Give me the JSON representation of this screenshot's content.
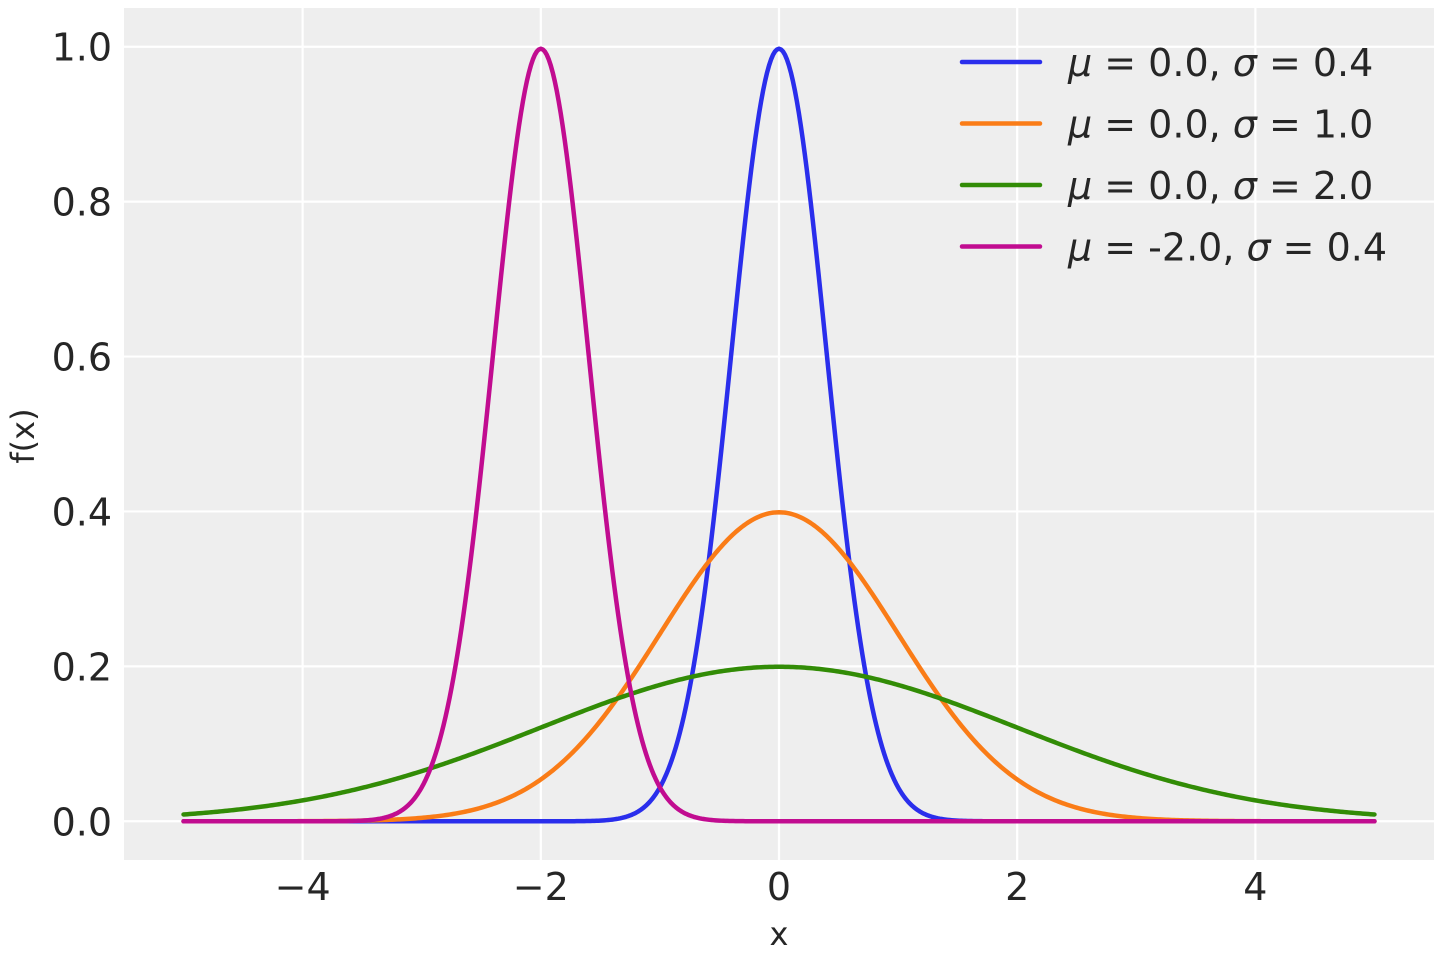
{
  "chart_data": {
    "type": "line",
    "xlabel": "x",
    "ylabel": "f(x)",
    "xlim": [
      -5.5,
      5.5
    ],
    "ylim": [
      -0.05,
      1.05
    ],
    "x_range": [
      -5,
      5
    ],
    "xticks": [
      -4,
      -2,
      0,
      2,
      4
    ],
    "xtick_labels": [
      "−4",
      "−2",
      "0",
      "2",
      "4"
    ],
    "yticks": [
      0.0,
      0.2,
      0.4,
      0.6,
      0.8,
      1.0
    ],
    "ytick_labels": [
      "0.0",
      "0.2",
      "0.4",
      "0.6",
      "0.8",
      "1.0"
    ],
    "grid": true,
    "legend_position": "top-right",
    "series": [
      {
        "name": "μ = 0.0, σ = 0.4",
        "mu": 0.0,
        "sigma": 0.4,
        "color": "#2a2eec"
      },
      {
        "name": "μ = 0.0, σ = 1.0",
        "mu": 0.0,
        "sigma": 1.0,
        "color": "#fa7c17"
      },
      {
        "name": "μ = 0.0, σ = 2.0",
        "mu": 0.0,
        "sigma": 2.0,
        "color": "#328c06"
      },
      {
        "name": "μ = -2.0, σ = 0.4",
        "mu": -2.0,
        "sigma": 0.4,
        "color": "#c10c90"
      }
    ],
    "legend_entries": [
      {
        "mu_sym": "μ",
        "mid": " = 0.0, ",
        "sigma_sym": "σ",
        "end": " = 0.4"
      },
      {
        "mu_sym": "μ",
        "mid": " = 0.0, ",
        "sigma_sym": "σ",
        "end": " = 1.0"
      },
      {
        "mu_sym": "μ",
        "mid": " = 0.0, ",
        "sigma_sym": "σ",
        "end": " = 2.0"
      },
      {
        "mu_sym": "μ",
        "mid": " = -2.0, ",
        "sigma_sym": "σ",
        "end": " = 0.4"
      }
    ],
    "colors": {
      "background": "#eeeeee",
      "grid": "#ffffff"
    }
  }
}
